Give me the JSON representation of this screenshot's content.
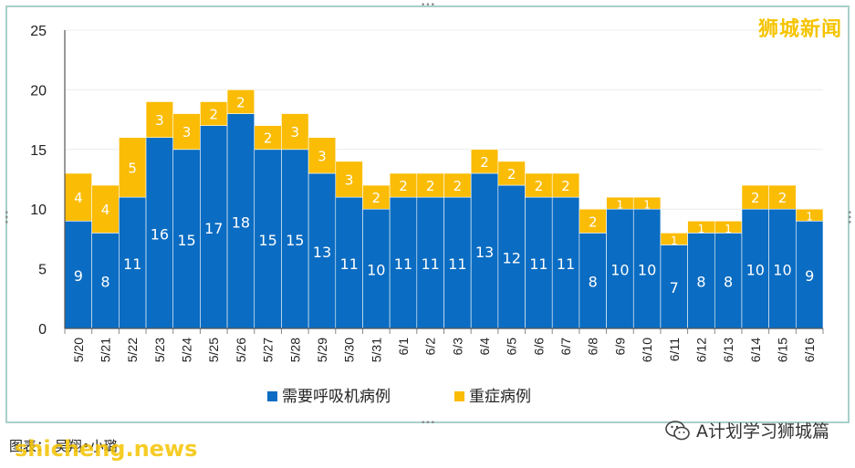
{
  "chart_data": {
    "type": "bar",
    "stacked": true,
    "categories": [
      "5/20",
      "5/21",
      "5/22",
      "5/23",
      "5/24",
      "5/25",
      "5/26",
      "5/27",
      "5/28",
      "5/29",
      "5/30",
      "5/31",
      "6/1",
      "6/2",
      "6/3",
      "6/4",
      "6/5",
      "6/6",
      "6/7",
      "6/8",
      "6/9",
      "6/10",
      "6/11",
      "6/12",
      "6/13",
      "6/14",
      "6/15",
      "6/16"
    ],
    "series": [
      {
        "name": "需要呼吸机病例",
        "color": "#0a6cc2",
        "values": [
          9,
          8,
          11,
          16,
          15,
          17,
          18,
          15,
          15,
          13,
          11,
          10,
          11,
          11,
          11,
          13,
          12,
          11,
          11,
          8,
          10,
          10,
          7,
          8,
          8,
          10,
          10,
          9
        ]
      },
      {
        "name": "重症病例",
        "color": "#fbbc05",
        "values": [
          4,
          4,
          5,
          3,
          3,
          2,
          2,
          2,
          3,
          3,
          3,
          2,
          2,
          2,
          2,
          2,
          2,
          2,
          2,
          2,
          1,
          1,
          1,
          1,
          1,
          2,
          2,
          1
        ]
      }
    ],
    "ylim": [
      0,
      25
    ],
    "yticks": [
      0,
      5,
      10,
      15,
      20,
      25
    ],
    "grid": true,
    "legend": "bottom"
  },
  "watermark_top": "狮城新闻",
  "credit": "图表：  吴翔•小璐",
  "watermark_bottom": "shicheng.news",
  "account_name": "A计划学习狮城篇"
}
